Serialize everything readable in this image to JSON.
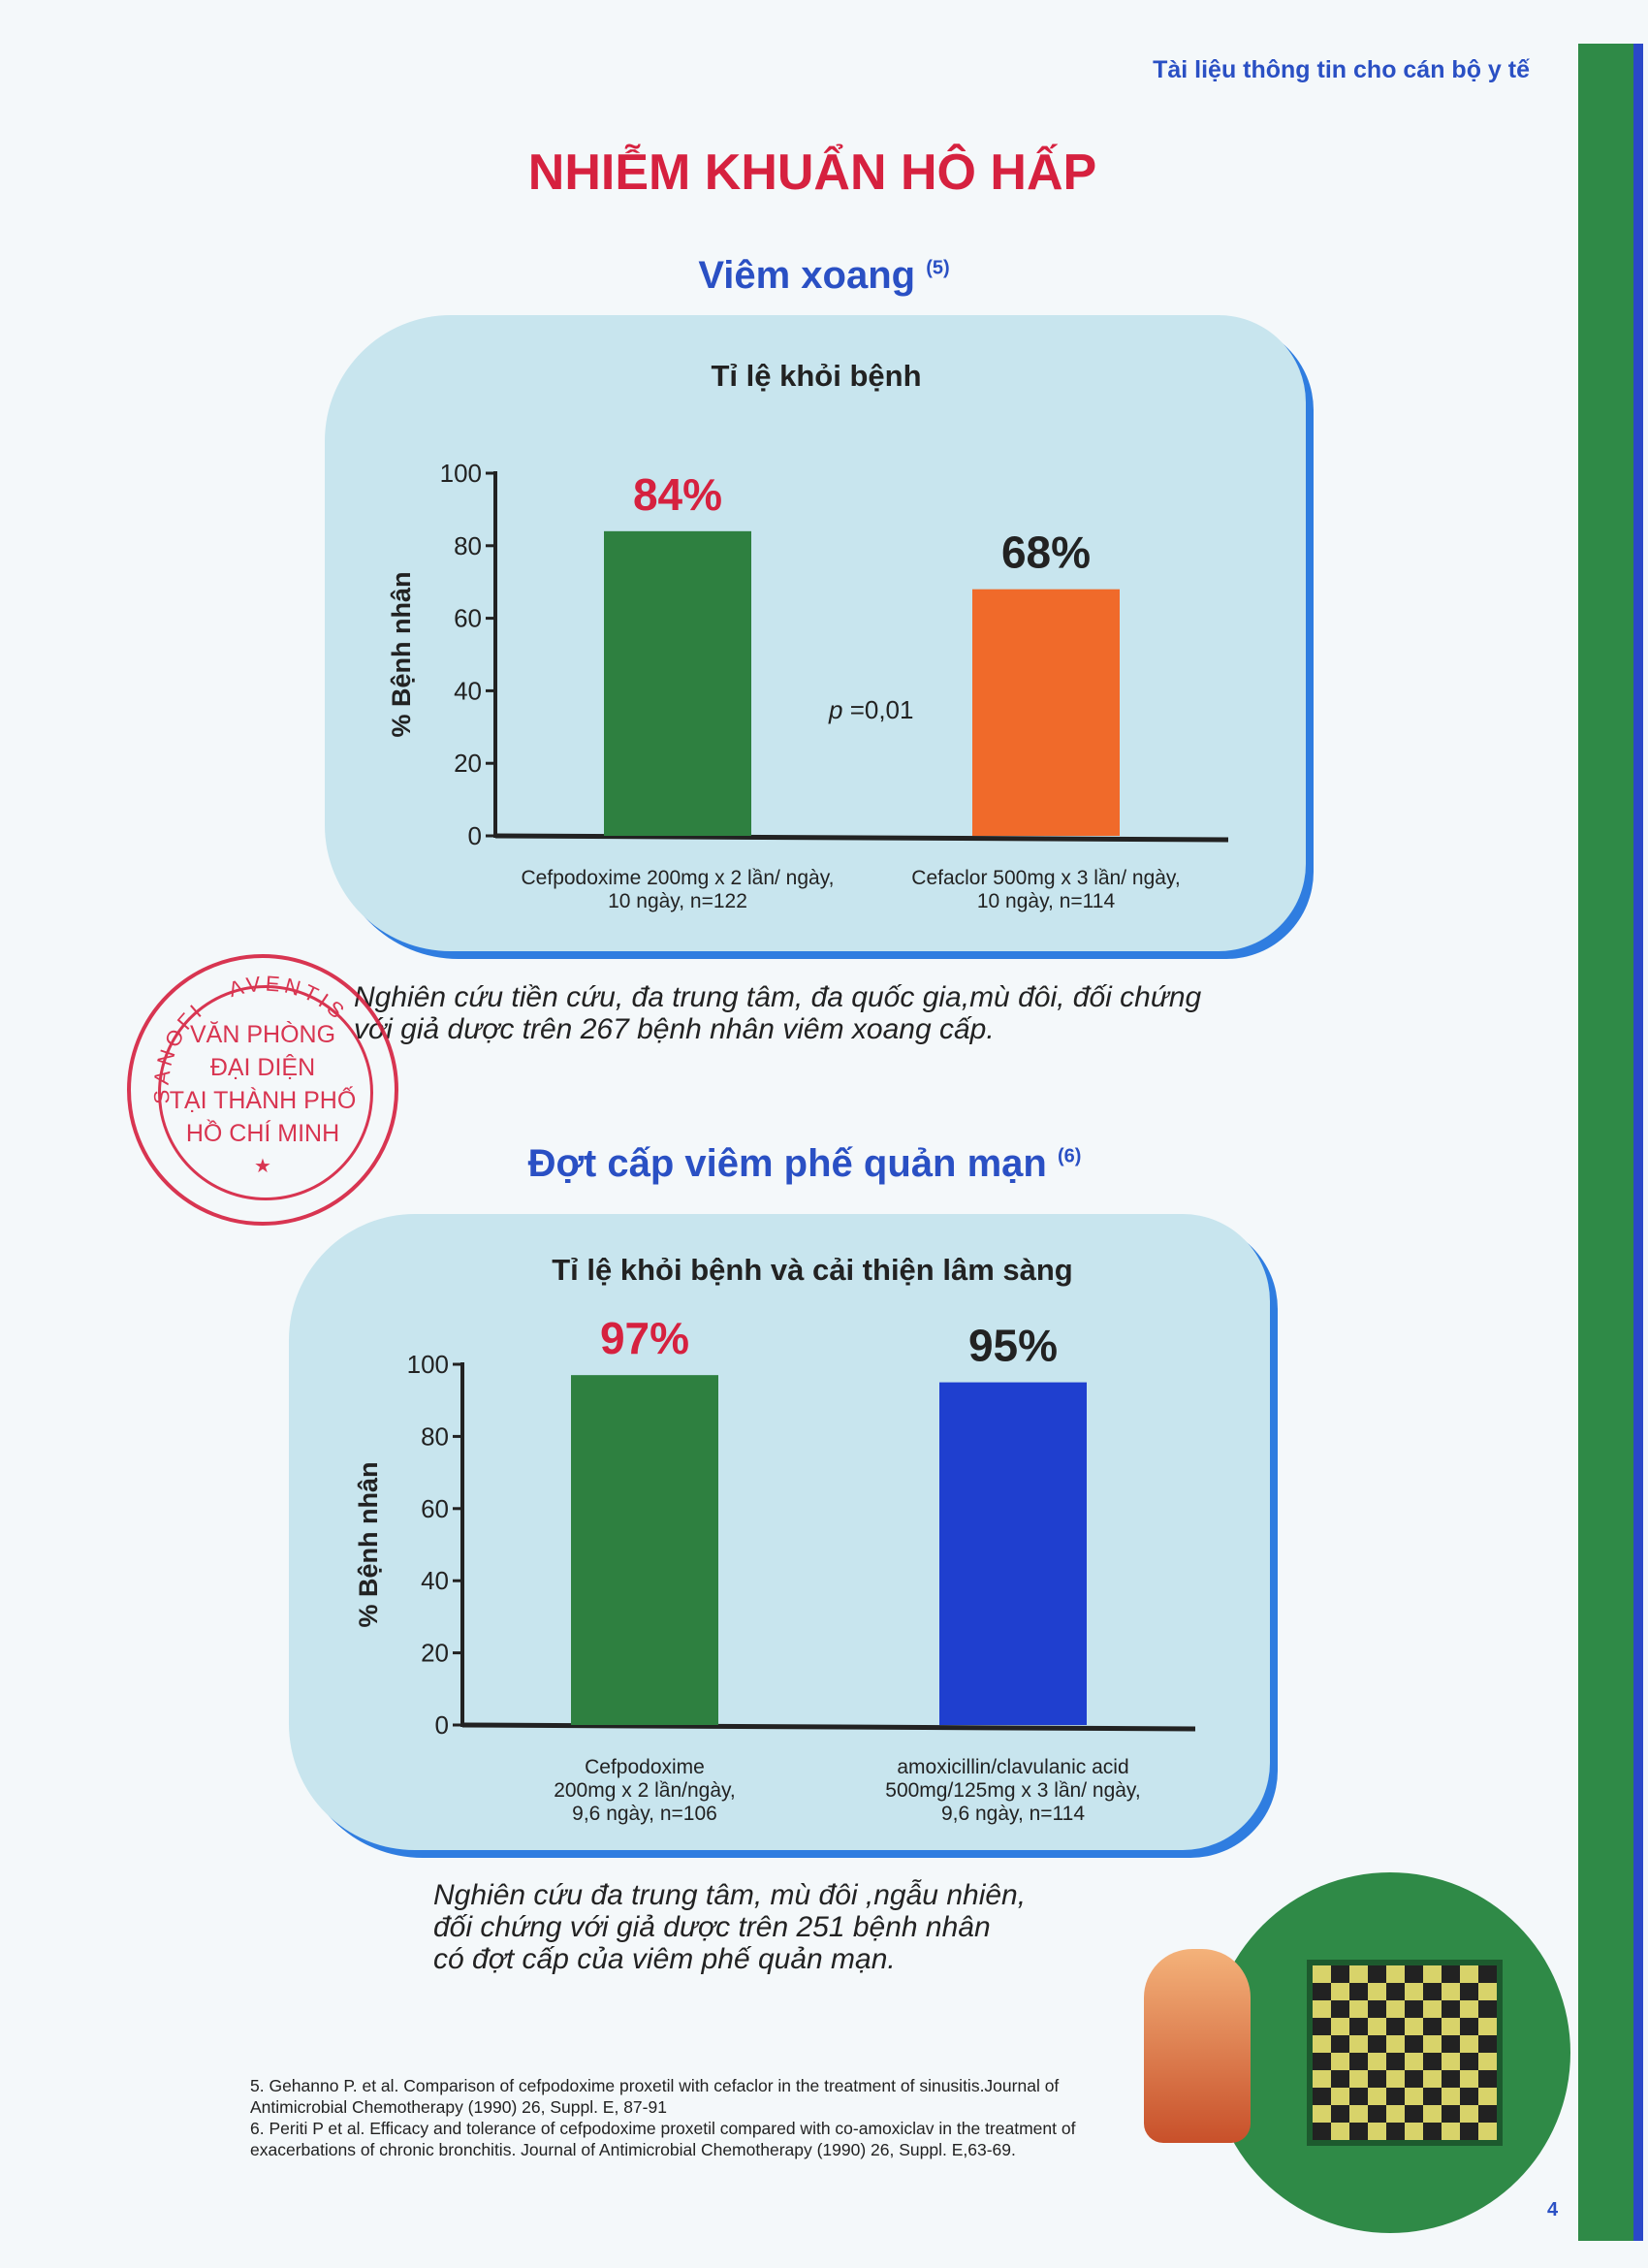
{
  "header": {
    "text": "Tài liệu thông tin cho cán bộ y tế"
  },
  "title": "NHIỄM KHUẨN HÔ HẤP",
  "section1": {
    "heading": "Viêm xoang",
    "ref": "(5)",
    "note_line1": "Nghiên cứu tiền cứu, đa trung tâm, đa quốc gia,mù đôi, đối chứng",
    "note_line2": "với giả dược trên 267 bệnh nhân viêm xoang cấp."
  },
  "section2": {
    "heading": "Đợt cấp viêm phế quản mạn",
    "ref": "(6)",
    "note_line1": "Nghiên cứu đa trung tâm, mù đôi ,ngẫu nhiên,",
    "note_line2": "đối chứng với giả dược trên 251 bệnh nhân",
    "note_line3": "có đợt cấp của viêm phế quản mạn."
  },
  "stamp": {
    "arc": "SANOFI - AVENTIS",
    "line1": "VĂN PHÒNG",
    "line2": "ĐẠI DIỆN",
    "line3": "TẠI THÀNH PHỐ",
    "line4": "HỒ CHÍ MINH",
    "star": "★"
  },
  "references": [
    "5. Gehanno P. et al. Comparison of cefpodoxime proxetil with cefaclor in the treatment of sinusitis.Journal of Antimicrobial Chemotherapy (1990) 26, Suppl. E, 87-91",
    "6. Periti P et al. Efficacy and tolerance of cefpodoxime proxetil compared with co-amoxiclav in the treatment of exacerbations of chronic bronchitis. Journal of Antimicrobial Chemotherapy (1990) 26, Suppl. E,63-69."
  ],
  "page_number": "4",
  "chart_data": [
    {
      "type": "bar",
      "title": "Tỉ lệ khỏi bệnh",
      "ylabel": "% Bệnh nhân",
      "xlabel": "",
      "ylim": [
        0,
        100
      ],
      "yticks": [
        0,
        20,
        40,
        60,
        80,
        100
      ],
      "grid": false,
      "categories": [
        [
          "Cefpodoxime 200mg x 2 lần/ ngày,",
          "10 ngày, n=122"
        ],
        [
          "Cefaclor 500mg x 3 lần/ ngày,",
          "10 ngày, n=114"
        ]
      ],
      "values": [
        84,
        68
      ],
      "data_labels": [
        "84%",
        "68%"
      ],
      "label_colors": [
        "#d6213f",
        "#222222"
      ],
      "colors": [
        "#2e8040",
        "#f06a2a"
      ],
      "annotation": "p =0,01"
    },
    {
      "type": "bar",
      "title": "Tỉ lệ khỏi bệnh và cải thiện lâm sàng",
      "ylabel": "% Bệnh nhân",
      "xlabel": "",
      "ylim": [
        0,
        100
      ],
      "yticks": [
        0,
        20,
        40,
        60,
        80,
        100
      ],
      "grid": false,
      "categories": [
        [
          "Cefpodoxime",
          "200mg x 2 lần/ngày,",
          "9,6 ngày, n=106"
        ],
        [
          "amoxicillin/clavulanic acid",
          "500mg/125mg x 3 lần/ ngày,",
          "9,6 ngày, n=114"
        ]
      ],
      "values": [
        97,
        95
      ],
      "data_labels": [
        "97%",
        "95%"
      ],
      "label_colors": [
        "#d6213f",
        "#222222"
      ],
      "colors": [
        "#2e8040",
        "#1f3fcf"
      ]
    }
  ]
}
